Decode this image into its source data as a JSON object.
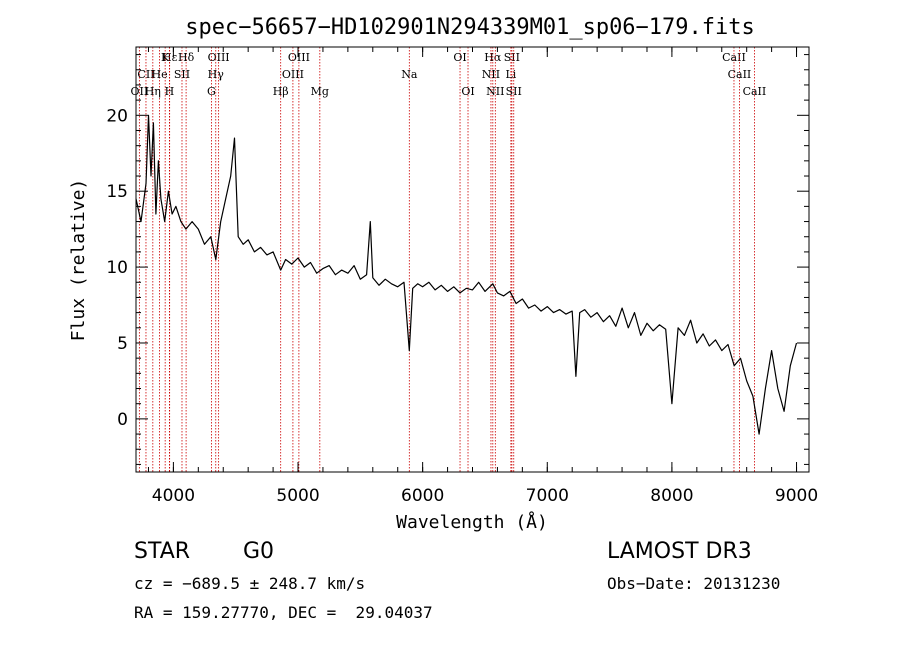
{
  "chart_data": {
    "type": "line",
    "title": "spec−56657−HD102901N294339M01_sp06−179.fits",
    "xlabel": "Wavelength (Å)",
    "ylabel": "Flux (relative)",
    "xlim": [
      3700,
      9100
    ],
    "ylim": [
      -3.5,
      24.5
    ],
    "xticks": [
      4000,
      5000,
      6000,
      7000,
      8000,
      9000
    ],
    "yticks": [
      0,
      5,
      10,
      15,
      20
    ],
    "grid": false,
    "series": [
      {
        "name": "flux",
        "x": [
          3700,
          3740,
          3780,
          3800,
          3820,
          3840,
          3860,
          3880,
          3900,
          3930,
          3960,
          3990,
          4020,
          4060,
          4100,
          4150,
          4200,
          4250,
          4300,
          4340,
          4380,
          4420,
          4460,
          4490,
          4520,
          4560,
          4600,
          4650,
          4700,
          4750,
          4800,
          4861,
          4900,
          4950,
          5000,
          5050,
          5100,
          5150,
          5200,
          5250,
          5300,
          5350,
          5400,
          5450,
          5500,
          5550,
          5580,
          5600,
          5650,
          5700,
          5750,
          5800,
          5850,
          5893,
          5920,
          5960,
          6000,
          6050,
          6100,
          6150,
          6200,
          6250,
          6300,
          6350,
          6400,
          6450,
          6500,
          6563,
          6600,
          6650,
          6700,
          6750,
          6800,
          6850,
          6900,
          6950,
          7000,
          7050,
          7100,
          7150,
          7200,
          7230,
          7260,
          7300,
          7350,
          7400,
          7450,
          7500,
          7550,
          7600,
          7650,
          7700,
          7750,
          7800,
          7850,
          7900,
          7950,
          8000,
          8050,
          8100,
          8150,
          8200,
          8250,
          8300,
          8350,
          8400,
          8450,
          8500,
          8550,
          8600,
          8650,
          8700,
          8750,
          8800,
          8850,
          8900,
          8950,
          9000
        ],
        "y": [
          14.5,
          13.0,
          15.5,
          20.0,
          16.0,
          19.5,
          13.5,
          17.0,
          14.5,
          13.0,
          15.0,
          13.5,
          14.0,
          13.0,
          12.5,
          13.0,
          12.5,
          11.5,
          12.0,
          10.5,
          13.0,
          14.5,
          16.0,
          18.5,
          12.0,
          11.5,
          11.8,
          11.0,
          11.3,
          10.8,
          11.0,
          9.8,
          10.5,
          10.2,
          10.6,
          10.0,
          10.3,
          9.6,
          9.9,
          10.1,
          9.5,
          9.8,
          9.6,
          10.1,
          9.2,
          9.5,
          13.0,
          9.3,
          8.8,
          9.2,
          8.9,
          8.7,
          9.0,
          4.5,
          8.6,
          8.9,
          8.7,
          9.0,
          8.5,
          8.8,
          8.4,
          8.7,
          8.3,
          8.6,
          8.5,
          9.0,
          8.4,
          8.9,
          8.3,
          8.1,
          8.4,
          7.6,
          7.9,
          7.3,
          7.5,
          7.1,
          7.4,
          7.0,
          7.2,
          6.9,
          7.1,
          2.8,
          7.0,
          7.2,
          6.7,
          7.0,
          6.4,
          6.8,
          6.1,
          7.3,
          6.0,
          7.0,
          5.5,
          6.3,
          5.8,
          6.2,
          5.9,
          1.0,
          6.0,
          5.5,
          6.5,
          5.0,
          5.6,
          4.8,
          5.2,
          4.5,
          4.9,
          3.5,
          4.0,
          2.5,
          1.5,
          -1.0,
          2.0,
          4.5,
          2.0,
          0.5,
          3.5,
          5.0
        ]
      }
    ],
    "line_markers": [
      {
        "label": "Hε",
        "x": 3970,
        "row": 1
      },
      {
        "label": "K",
        "x": 3934,
        "row": 1
      },
      {
        "label": "Hδ",
        "x": 4102,
        "row": 1
      },
      {
        "label": "OIII",
        "x": 4363,
        "row": 1
      },
      {
        "label": "OIII",
        "x": 5007,
        "row": 1
      },
      {
        "label": "OI",
        "x": 6300,
        "row": 1
      },
      {
        "label": "Hα",
        "x": 6563,
        "row": 1
      },
      {
        "label": "SII",
        "x": 6716,
        "row": 1
      },
      {
        "label": "CaII",
        "x": 8498,
        "row": 1
      },
      {
        "label": "CII",
        "x": 3780,
        "row": 2
      },
      {
        "label": "He",
        "x": 3889,
        "row": 2
      },
      {
        "label": "SII",
        "x": 4069,
        "row": 2
      },
      {
        "label": "Hγ",
        "x": 4340,
        "row": 2
      },
      {
        "label": "OIII",
        "x": 4959,
        "row": 2
      },
      {
        "label": "Na",
        "x": 5893,
        "row": 2
      },
      {
        "label": "NII",
        "x": 6548,
        "row": 2
      },
      {
        "label": "Li",
        "x": 6708,
        "row": 2
      },
      {
        "label": "CaII",
        "x": 8542,
        "row": 2
      },
      {
        "label": "OII",
        "x": 3727,
        "row": 3
      },
      {
        "label": "Hη",
        "x": 3835,
        "row": 3
      },
      {
        "label": "H",
        "x": 3968,
        "row": 3
      },
      {
        "label": "G",
        "x": 4305,
        "row": 3
      },
      {
        "label": "Hβ",
        "x": 4861,
        "row": 3
      },
      {
        "label": "Mg",
        "x": 5175,
        "row": 3
      },
      {
        "label": "OI",
        "x": 6364,
        "row": 3
      },
      {
        "label": "NII",
        "x": 6583,
        "row": 3
      },
      {
        "label": "SII",
        "x": 6731,
        "row": 3
      },
      {
        "label": "CaII",
        "x": 8662,
        "row": 3
      }
    ]
  },
  "info": {
    "object_class": "STAR",
    "subclass": "G0",
    "survey": "LAMOST DR3",
    "cz": "cz = −689.5 ± 248.7 km/s",
    "obs_date": "Obs−Date: 20131230",
    "radec": "RA = 159.27770, DEC =  29.04037"
  },
  "colors": {
    "marker_line": "#cc0000",
    "spectrum": "#000000",
    "axis": "#000000"
  }
}
